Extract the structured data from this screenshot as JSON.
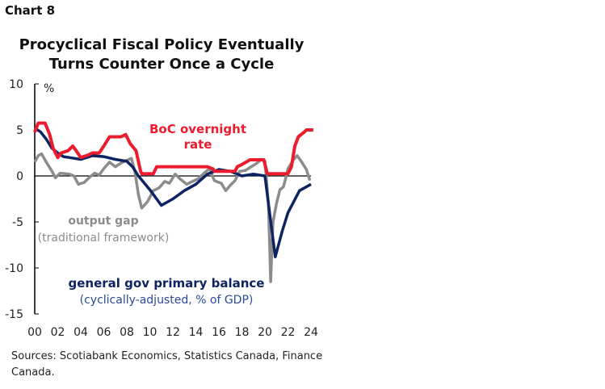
{
  "chart_label": "Chart 8",
  "chart_data": {
    "type": "line",
    "title": [
      "Procyclical Fiscal Policy Eventually",
      "Turns Counter Once a Cycle"
    ],
    "ylabel": "%",
    "ylim": [
      -15,
      10
    ],
    "yticks": [
      10,
      5,
      0,
      -5,
      -10,
      -15
    ],
    "xlim": [
      2000,
      2024
    ],
    "xtick_labels": [
      "00",
      "02",
      "04",
      "06",
      "08",
      "10",
      "12",
      "14",
      "16",
      "18",
      "20",
      "22",
      "24"
    ],
    "grid": false,
    "series": [
      {
        "name": "BoC overnight rate",
        "color": "#EC1C2E",
        "points": [
          [
            2000,
            4.75
          ],
          [
            2000.3,
            5.75
          ],
          [
            2000.9,
            5.75
          ],
          [
            2001.3,
            4.5
          ],
          [
            2001.6,
            3
          ],
          [
            2002,
            2
          ],
          [
            2002.3,
            2.5
          ],
          [
            2002.9,
            2.75
          ],
          [
            2003.3,
            3.25
          ],
          [
            2003.6,
            2.75
          ],
          [
            2004,
            2
          ],
          [
            2004.6,
            2.25
          ],
          [
            2005,
            2.5
          ],
          [
            2005.6,
            2.5
          ],
          [
            2006,
            3.25
          ],
          [
            2006.5,
            4.25
          ],
          [
            2007.5,
            4.25
          ],
          [
            2007.9,
            4.5
          ],
          [
            2008.3,
            3.5
          ],
          [
            2008.8,
            2.75
          ],
          [
            2009.2,
            0.5
          ],
          [
            2009.3,
            0.25
          ],
          [
            2010.3,
            0.25
          ],
          [
            2010.6,
            1
          ],
          [
            2015,
            1
          ],
          [
            2015.5,
            0.75
          ],
          [
            2015.6,
            0.5
          ],
          [
            2017.4,
            0.5
          ],
          [
            2017.6,
            1
          ],
          [
            2018,
            1.25
          ],
          [
            2018.7,
            1.75
          ],
          [
            2019.9,
            1.75
          ],
          [
            2020.2,
            0.25
          ],
          [
            2022,
            0.25
          ],
          [
            2022.3,
            1
          ],
          [
            2022.6,
            3.25
          ],
          [
            2022.9,
            4.25
          ],
          [
            2023.4,
            4.75
          ],
          [
            2023.6,
            5
          ],
          [
            2024.2,
            5
          ]
        ]
      },
      {
        "name": "general gov primary balance",
        "sublabel": "(cyclically-adjusted, % of GDP)",
        "color": "#0D2463",
        "points": [
          [
            2000,
            5.2
          ],
          [
            2000.5,
            4.8
          ],
          [
            2001,
            4
          ],
          [
            2001.5,
            3
          ],
          [
            2002,
            2.5
          ],
          [
            2002.5,
            2.1
          ],
          [
            2003,
            2
          ],
          [
            2004,
            1.8
          ],
          [
            2005,
            2.2
          ],
          [
            2006,
            2.1
          ],
          [
            2007,
            1.8
          ],
          [
            2008,
            1.6
          ],
          [
            2008.5,
            1
          ],
          [
            2009,
            0
          ],
          [
            2010,
            -1.5
          ],
          [
            2011,
            -3.2
          ],
          [
            2012,
            -2.5
          ],
          [
            2013,
            -1.6
          ],
          [
            2014,
            -0.9
          ],
          [
            2015,
            0.2
          ],
          [
            2016,
            0.7
          ],
          [
            2017,
            0.5
          ],
          [
            2018,
            0
          ],
          [
            2019,
            0.2
          ],
          [
            2020,
            0
          ],
          [
            2020.3,
            -3
          ],
          [
            2020.9,
            -8.8
          ],
          [
            2021.5,
            -6
          ],
          [
            2022,
            -4
          ],
          [
            2023,
            -1.6
          ],
          [
            2024,
            -0.9
          ]
        ]
      },
      {
        "name": "output gap",
        "sublabel": "(traditional framework)",
        "color": "#8C8C8C",
        "points": [
          [
            2000,
            1.5
          ],
          [
            2000.3,
            2.2
          ],
          [
            2000.6,
            2.4
          ],
          [
            2001,
            1.5
          ],
          [
            2001.5,
            0.5
          ],
          [
            2001.8,
            -0.2
          ],
          [
            2002.2,
            0.3
          ],
          [
            2003,
            0.2
          ],
          [
            2003.4,
            0
          ],
          [
            2003.8,
            -0.9
          ],
          [
            2004.3,
            -0.7
          ],
          [
            2004.8,
            -0.1
          ],
          [
            2005.2,
            0.3
          ],
          [
            2005.6,
            0.1
          ],
          [
            2006,
            0.8
          ],
          [
            2006.5,
            1.5
          ],
          [
            2007,
            1
          ],
          [
            2007.5,
            1.4
          ],
          [
            2008,
            1.7
          ],
          [
            2008.4,
            1.9
          ],
          [
            2008.7,
            0.5
          ],
          [
            2009,
            -2
          ],
          [
            2009.3,
            -3.5
          ],
          [
            2009.8,
            -2.8
          ],
          [
            2010.3,
            -1.6
          ],
          [
            2010.8,
            -1.3
          ],
          [
            2011.3,
            -0.6
          ],
          [
            2011.7,
            -0.8
          ],
          [
            2012.2,
            0.2
          ],
          [
            2012.6,
            -0.3
          ],
          [
            2013.2,
            -0.9
          ],
          [
            2013.7,
            -0.6
          ],
          [
            2014.2,
            -0.3
          ],
          [
            2014.8,
            0.4
          ],
          [
            2015.2,
            0.8
          ],
          [
            2015.6,
            -0.5
          ],
          [
            2016.2,
            -0.8
          ],
          [
            2016.6,
            -1.6
          ],
          [
            2017,
            -1
          ],
          [
            2017.4,
            -0.5
          ],
          [
            2017.8,
            0.5
          ],
          [
            2018.3,
            0.6
          ],
          [
            2018.8,
            1
          ],
          [
            2019.2,
            1.3
          ],
          [
            2019.7,
            1.8
          ],
          [
            2020,
            1.6
          ],
          [
            2020.3,
            -3
          ],
          [
            2020.5,
            -11.5
          ],
          [
            2020.7,
            -5
          ],
          [
            2021,
            -3
          ],
          [
            2021.3,
            -1.5
          ],
          [
            2021.6,
            -1.2
          ],
          [
            2021.8,
            -0.3
          ],
          [
            2022,
            0.8
          ],
          [
            2022.5,
            1.8
          ],
          [
            2022.8,
            2.2
          ],
          [
            2023.2,
            1.5
          ],
          [
            2023.6,
            0.7
          ],
          [
            2023.9,
            -0.5
          ]
        ]
      }
    ],
    "annotations": {
      "boc": [
        "BoC overnight",
        "rate"
      ],
      "gap": [
        "output gap",
        "(traditional framework)"
      ],
      "bal": [
        "general gov primary balance",
        "(cyclically-adjusted, % of GDP)"
      ]
    }
  },
  "sources": "Sources: Scotiabank Economics, Statistics Canada, Finance Canada."
}
